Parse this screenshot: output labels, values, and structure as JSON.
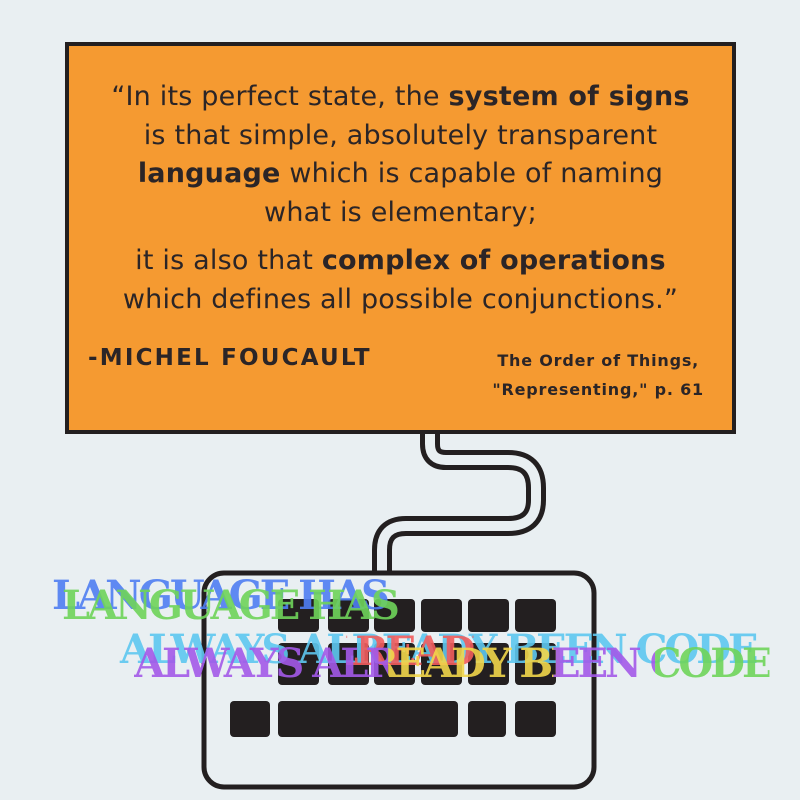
{
  "quote": {
    "line1_pre": "“In its perfect state, the ",
    "line1_bold": "system of signs",
    "line2": "is that simple, absolutely transparent",
    "line3_bold": "language",
    "line3_post": " which is capable of naming",
    "line4": "what is elementary;",
    "line5_pre": "it is also that ",
    "line5_bold": "complex of operations",
    "line6": "which defines all possible conjunctions.”"
  },
  "author": "-MICHEL FOUCAULT",
  "citation": {
    "line1": "The Order of Things,",
    "line2": "\"Representing,\" p. 61"
  },
  "slogan": {
    "line1": "LANGUAGE HAS",
    "line2": "ALWAYS ALREADY BEEN CODE"
  },
  "colors": {
    "background": "#e9eff2",
    "monitor": "#f59a31",
    "ink": "#231f20",
    "slogan_blue": "#4f7ef2",
    "slogan_green": "#6fd45a",
    "slogan_red": "#f25c5c",
    "slogan_yellow": "#f2d64b",
    "slogan_purple": "#a459e8",
    "slogan_cyan": "#5ec8f0"
  }
}
